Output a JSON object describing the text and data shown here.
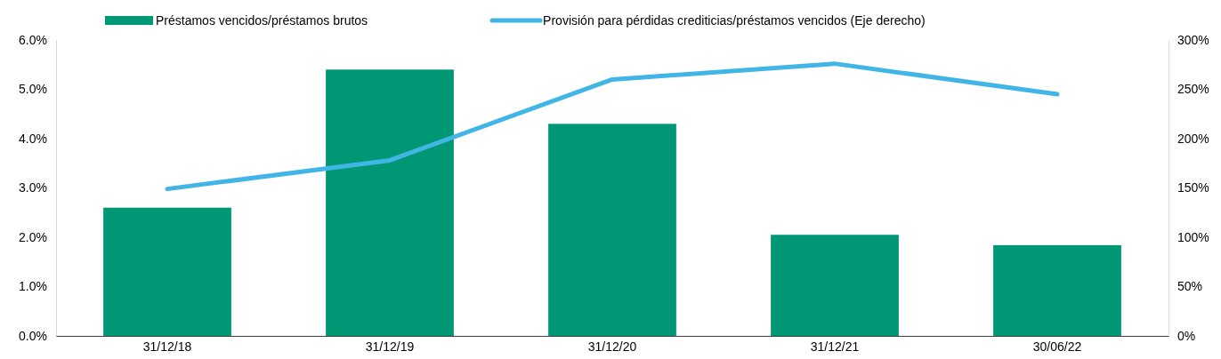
{
  "chart_data": {
    "type": "bar",
    "categories": [
      "31/12/18",
      "31/12/19",
      "31/12/20",
      "31/12/21",
      "30/06/22"
    ],
    "series": [
      {
        "name": "Préstamos vencidos/préstamos brutos",
        "color": "#009874",
        "values": [
          2.6,
          5.4,
          4.3,
          2.05,
          1.84
        ]
      },
      {
        "name": "Provisión para pérdidas crediticias/préstamos vencidos (Eje derecho)",
        "color": "#41b6e6",
        "type": "line",
        "axis": "y2",
        "values": [
          149,
          178,
          260,
          276,
          245
        ]
      }
    ],
    "ylim": [
      0,
      6
    ],
    "yticks": [
      {
        "value": 0,
        "label": "0.0%"
      },
      {
        "value": 1,
        "label": "1.0%"
      },
      {
        "value": 2,
        "label": "2.0%"
      },
      {
        "value": 3,
        "label": "3.0%"
      },
      {
        "value": 4,
        "label": "4.0%"
      },
      {
        "value": 5,
        "label": "5.0%"
      },
      {
        "value": 6,
        "label": "6.0%"
      }
    ],
    "y2lim": [
      0,
      300
    ],
    "y2ticks": [
      {
        "value": 0,
        "label": "0%"
      },
      {
        "value": 50,
        "label": "50%"
      },
      {
        "value": 100,
        "label": "100%"
      },
      {
        "value": 150,
        "label": "150%"
      },
      {
        "value": 200,
        "label": "200%"
      },
      {
        "value": 250,
        "label": "250%"
      },
      {
        "value": 300,
        "label": "300%"
      }
    ],
    "legend": "top",
    "grid": false,
    "marker": "none",
    "line_style": "solid"
  }
}
